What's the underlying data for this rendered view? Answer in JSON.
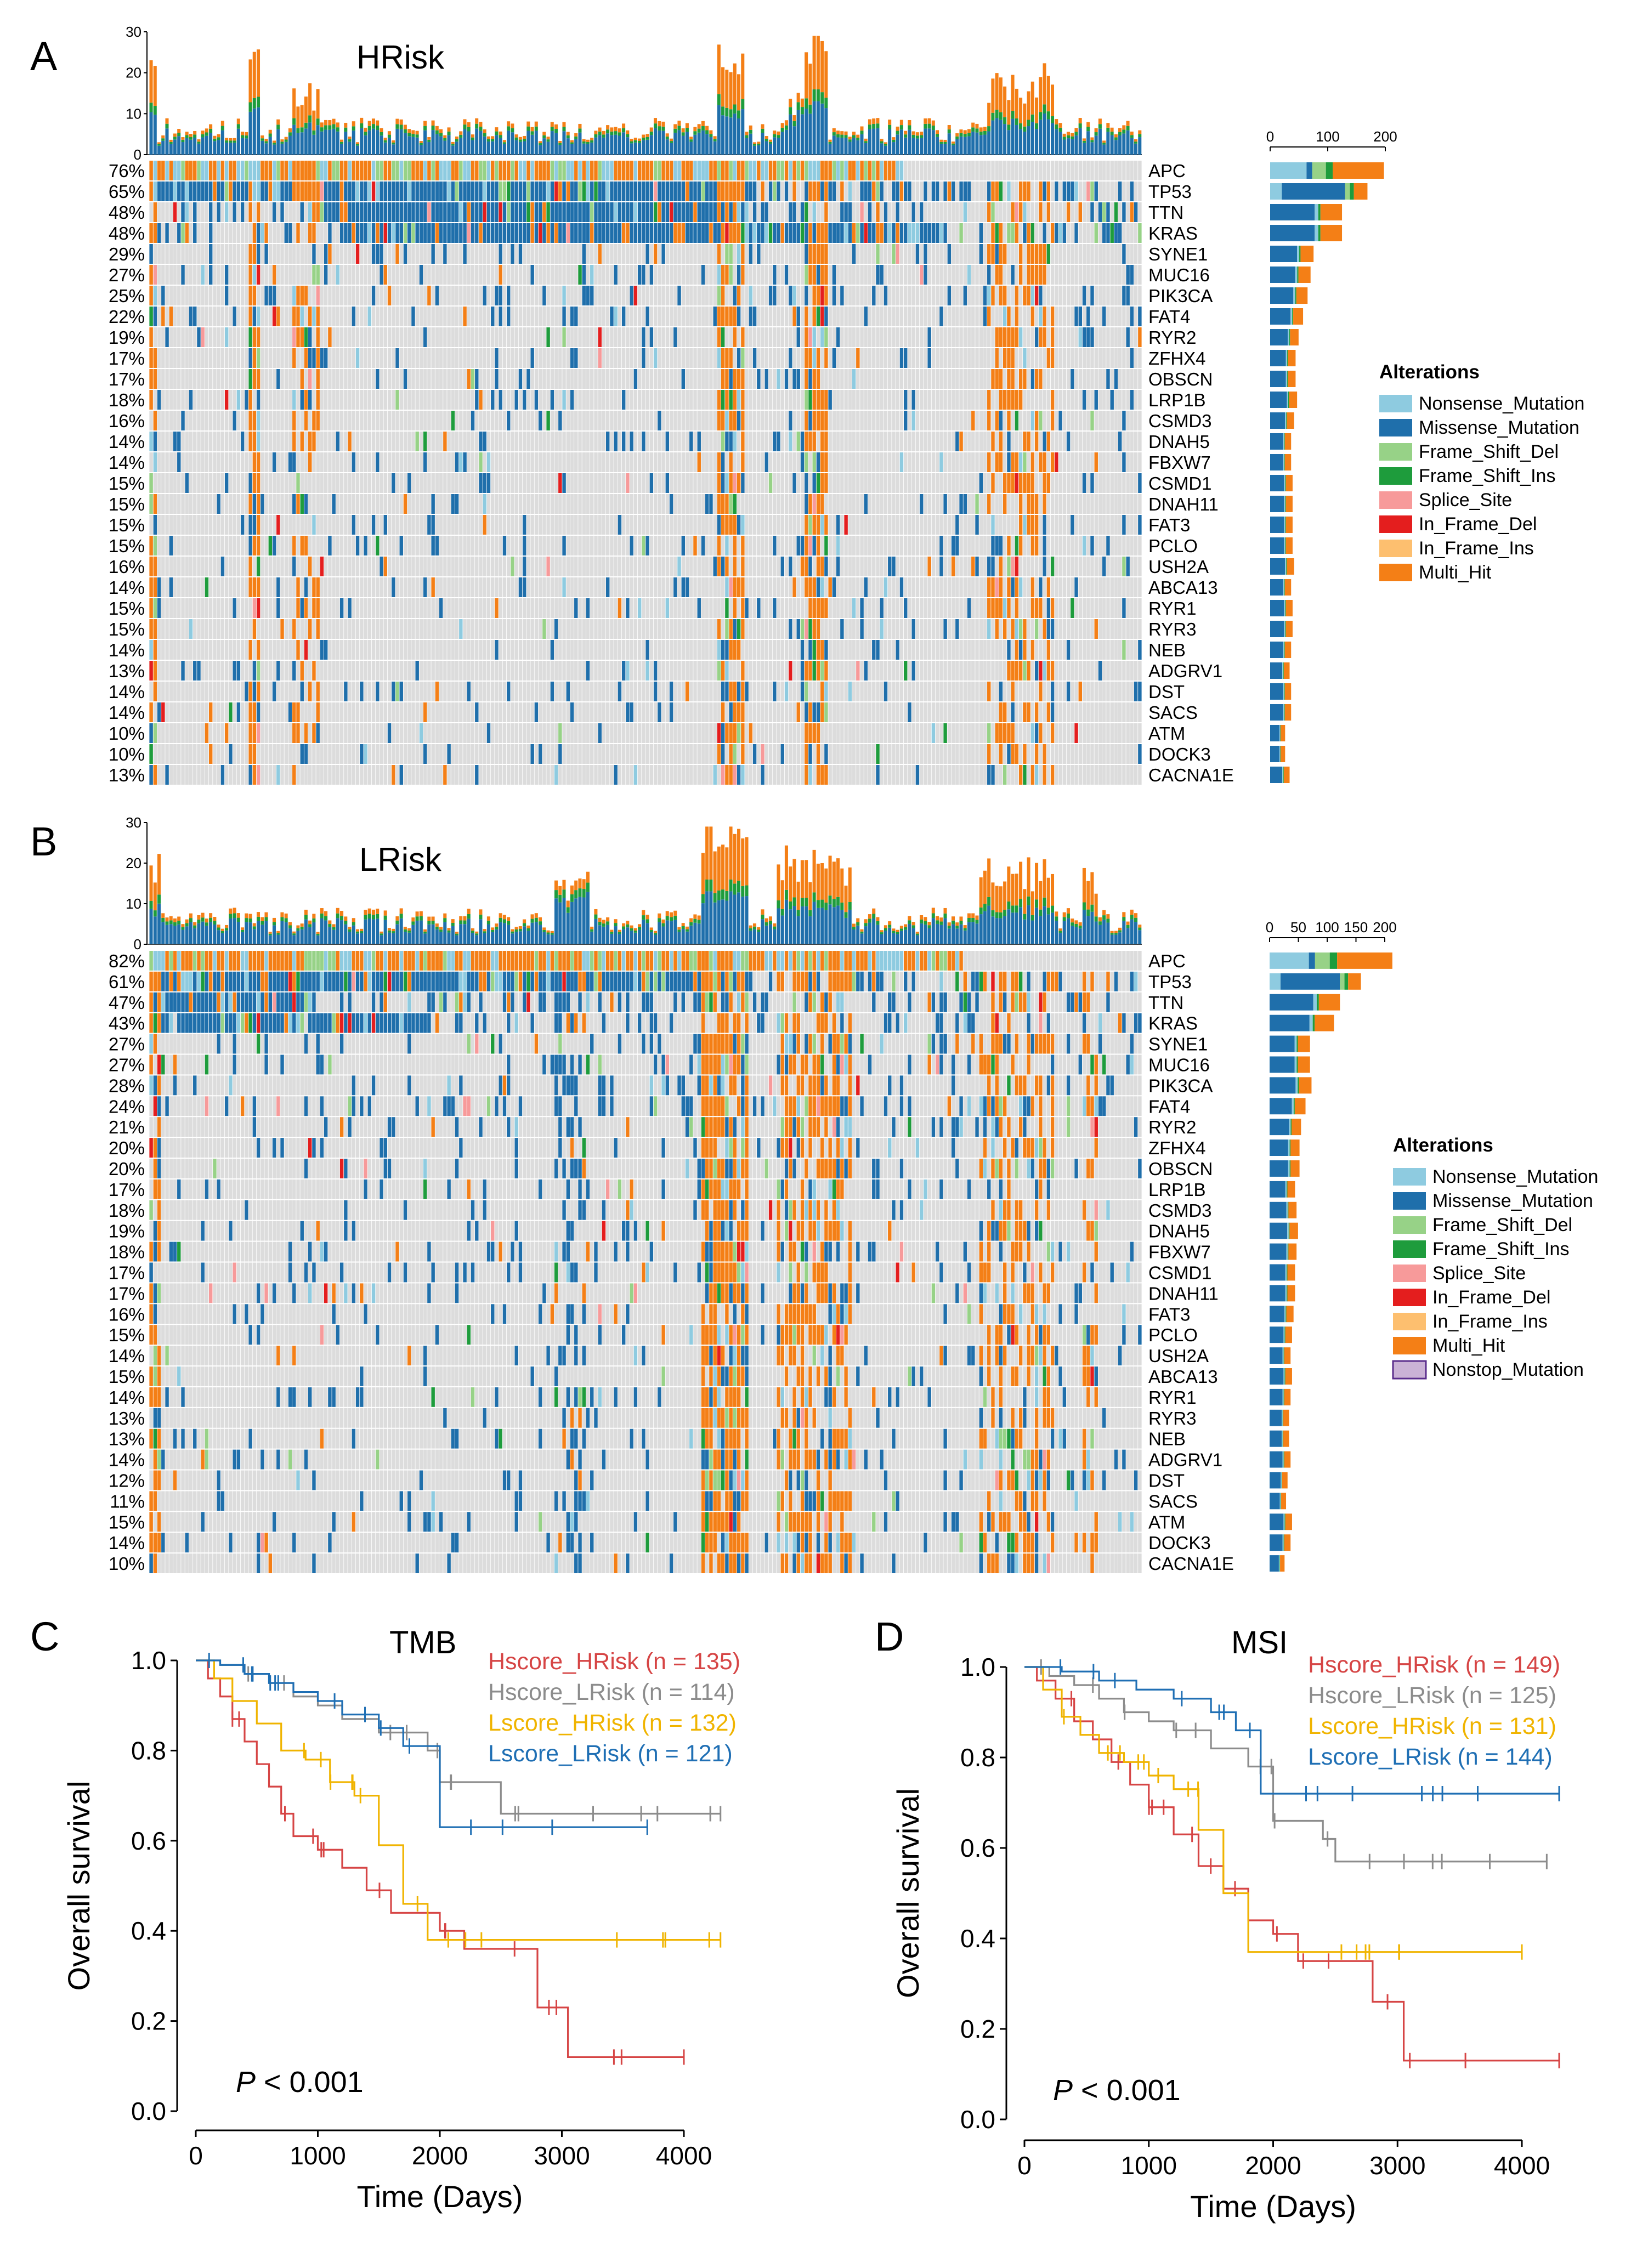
{
  "colors": {
    "Nonsense_Mutation": "#8ECBE0",
    "Missense_Mutation": "#1F6FAB",
    "Frame_Shift_Del": "#97D287",
    "Frame_Shift_Ins": "#1E9C3C",
    "Splice_Site": "#F79A9A",
    "In_Frame_Del": "#E41E1E",
    "In_Frame_Ins": "#FDBF6F",
    "Multi_Hit": "#F47F16",
    "Nonstop_Mutation": "#CAB2D6",
    "none": "#DCDCDC"
  },
  "chart_data": [
    {
      "type": "oncoplot",
      "panel": "A",
      "title": "HRisk",
      "tmb_axis": {
        "ticks": [
          "30",
          "20",
          "10",
          "0"
        ],
        "ylim": [
          0,
          30
        ]
      },
      "bar_axis": {
        "ticks": [
          "0",
          "100",
          "200"
        ],
        "xlim": [
          0,
          200
        ]
      },
      "n_samples": 250,
      "genes": [
        "APC",
        "TP53",
        "TTN",
        "KRAS",
        "SYNE1",
        "MUC16",
        "PIK3CA",
        "FAT4",
        "RYR2",
        "ZFHX4",
        "OBSCN",
        "LRP1B",
        "CSMD3",
        "DNAH5",
        "FBXW7",
        "CSMD1",
        "DNAH11",
        "FAT3",
        "PCLO",
        "USH2A",
        "ABCA13",
        "RYR1",
        "RYR3",
        "NEB",
        "ADGRV1",
        "DST",
        "SACS",
        "ATM",
        "DOCK3",
        "CACNA1E"
      ],
      "percents": [
        "76%",
        "65%",
        "48%",
        "48%",
        "29%",
        "27%",
        "25%",
        "22%",
        "19%",
        "17%",
        "17%",
        "18%",
        "16%",
        "14%",
        "14%",
        "15%",
        "15%",
        "15%",
        "15%",
        "16%",
        "14%",
        "15%",
        "15%",
        "14%",
        "13%",
        "14%",
        "14%",
        "10%",
        "10%",
        "13%"
      ],
      "pct_values": [
        76,
        65,
        48,
        48,
        29,
        27,
        25,
        22,
        19,
        17,
        17,
        18,
        16,
        14,
        14,
        15,
        15,
        15,
        15,
        16,
        14,
        15,
        15,
        14,
        13,
        14,
        14,
        10,
        10,
        13
      ],
      "legend_title": "Alterations",
      "legend": [
        "Nonsense_Mutation",
        "Missense_Mutation",
        "Frame_Shift_Del",
        "Frame_Shift_Ins",
        "Splice_Site",
        "In_Frame_Del",
        "In_Frame_Ins",
        "Multi_Hit"
      ]
    },
    {
      "type": "oncoplot",
      "panel": "B",
      "title": "LRisk",
      "tmb_axis": {
        "ticks": [
          "30",
          "20",
          "10",
          "0"
        ],
        "ylim": [
          0,
          30
        ]
      },
      "bar_axis": {
        "ticks": [
          "0",
          "50",
          "100",
          "150",
          "200"
        ],
        "xlim": [
          0,
          200
        ]
      },
      "n_samples": 250,
      "genes": [
        "APC",
        "TP53",
        "TTN",
        "KRAS",
        "SYNE1",
        "MUC16",
        "PIK3CA",
        "FAT4",
        "RYR2",
        "ZFHX4",
        "OBSCN",
        "LRP1B",
        "CSMD3",
        "DNAH5",
        "FBXW7",
        "CSMD1",
        "DNAH11",
        "FAT3",
        "PCLO",
        "USH2A",
        "ABCA13",
        "RYR1",
        "RYR3",
        "NEB",
        "ADGRV1",
        "DST",
        "SACS",
        "ATM",
        "DOCK3",
        "CACNA1E"
      ],
      "percents": [
        "82%",
        "61%",
        "47%",
        "43%",
        "27%",
        "27%",
        "28%",
        "24%",
        "21%",
        "20%",
        "20%",
        "17%",
        "18%",
        "19%",
        "18%",
        "17%",
        "17%",
        "16%",
        "15%",
        "14%",
        "15%",
        "14%",
        "13%",
        "13%",
        "14%",
        "12%",
        "11%",
        "15%",
        "14%",
        "10%"
      ],
      "pct_values": [
        82,
        61,
        47,
        43,
        27,
        27,
        28,
        24,
        21,
        20,
        20,
        17,
        18,
        19,
        18,
        17,
        17,
        16,
        15,
        14,
        15,
        14,
        13,
        13,
        14,
        12,
        11,
        15,
        14,
        10
      ],
      "legend_title": "Alterations",
      "legend": [
        "Nonsense_Mutation",
        "Missense_Mutation",
        "Frame_Shift_Del",
        "Frame_Shift_Ins",
        "Splice_Site",
        "In_Frame_Del",
        "In_Frame_Ins",
        "Multi_Hit",
        "Nonstop_Mutation"
      ]
    },
    {
      "type": "line",
      "subtype": "kaplan-meier",
      "panel": "C",
      "title": "TMB",
      "xlabel": "Time (Days)",
      "ylabel": "Overall survival",
      "xlim": [
        0,
        4300
      ],
      "ylim": [
        0,
        1.0
      ],
      "xticks": [
        "0",
        "1000",
        "2000",
        "3000",
        "4000"
      ],
      "yticks": [
        "0.0",
        "0.2",
        "0.4",
        "0.6",
        "0.8",
        "1.0"
      ],
      "pvalue": {
        "p": "P",
        "rest": " < 0.001"
      },
      "series": [
        {
          "name": "Hscore_HRisk (n = 135)",
          "color": "#D64545",
          "x": [
            0,
            100,
            200,
            300,
            400,
            500,
            600,
            700,
            800,
            1000,
            1200,
            1400,
            1600,
            1800,
            2000,
            2200,
            2800,
            3050,
            4000
          ],
          "y": [
            1.0,
            0.96,
            0.92,
            0.87,
            0.82,
            0.77,
            0.72,
            0.66,
            0.61,
            0.58,
            0.54,
            0.49,
            0.44,
            0.44,
            0.4,
            0.36,
            0.23,
            0.12,
            0.12
          ]
        },
        {
          "name": "Hscore_LRisk (n = 114)",
          "color": "#8C8C8C",
          "x": [
            0,
            200,
            400,
            600,
            800,
            1000,
            1200,
            1500,
            1900,
            2000,
            2500,
            4300
          ],
          "y": [
            1.0,
            0.99,
            0.97,
            0.95,
            0.92,
            0.9,
            0.87,
            0.84,
            0.8,
            0.73,
            0.66,
            0.66
          ]
        },
        {
          "name": "Lscore_HRisk (n = 132)",
          "color": "#F0B400",
          "x": [
            0,
            150,
            300,
            500,
            700,
            900,
            1100,
            1300,
            1500,
            1700,
            1900,
            4300
          ],
          "y": [
            1.0,
            0.96,
            0.91,
            0.86,
            0.8,
            0.78,
            0.73,
            0.7,
            0.59,
            0.46,
            0.38,
            0.38
          ]
        },
        {
          "name": "Lscore_LRisk (n = 121)",
          "color": "#1F6FB4",
          "x": [
            0,
            200,
            400,
            600,
            800,
            1000,
            1200,
            1500,
            1700,
            2000,
            3700
          ],
          "y": [
            1.0,
            0.99,
            0.97,
            0.95,
            0.93,
            0.91,
            0.88,
            0.85,
            0.81,
            0.63,
            0.63
          ]
        }
      ]
    },
    {
      "type": "line",
      "subtype": "kaplan-meier",
      "panel": "D",
      "title": "MSI",
      "xlabel": "Time (Days)",
      "ylabel": "Overall survival",
      "xlim": [
        0,
        4300
      ],
      "ylim": [
        0,
        1.0
      ],
      "xticks": [
        "0",
        "1000",
        "2000",
        "3000",
        "4000"
      ],
      "yticks": [
        "0.0",
        "0.2",
        "0.4",
        "0.6",
        "0.8",
        "1.0"
      ],
      "pvalue": {
        "p": "P",
        "rest": " < 0.001"
      },
      "series": [
        {
          "name": "Hscore_HRisk (n = 149)",
          "color": "#D64545",
          "x": [
            0,
            100,
            250,
            400,
            550,
            700,
            850,
            1000,
            1200,
            1400,
            1600,
            1800,
            2000,
            2200,
            2800,
            3050,
            4300
          ],
          "y": [
            1.0,
            0.97,
            0.93,
            0.88,
            0.84,
            0.79,
            0.74,
            0.69,
            0.63,
            0.56,
            0.51,
            0.44,
            0.41,
            0.35,
            0.26,
            0.13,
            0.13
          ]
        },
        {
          "name": "Hscore_LRisk (n = 125)",
          "color": "#8C8C8C",
          "x": [
            0,
            200,
            400,
            600,
            800,
            1000,
            1200,
            1500,
            1800,
            2000,
            2400,
            2500,
            4200
          ],
          "y": [
            1.0,
            0.98,
            0.96,
            0.93,
            0.9,
            0.88,
            0.86,
            0.82,
            0.78,
            0.66,
            0.62,
            0.57,
            0.57
          ]
        },
        {
          "name": "Lscore_HRisk (n = 131)",
          "color": "#F0B400",
          "x": [
            0,
            150,
            300,
            450,
            600,
            800,
            1000,
            1200,
            1400,
            1600,
            1800,
            4000
          ],
          "y": [
            1.0,
            0.95,
            0.89,
            0.85,
            0.81,
            0.79,
            0.76,
            0.73,
            0.64,
            0.5,
            0.37,
            0.37
          ]
        },
        {
          "name": "Lscore_LRisk (n = 144)",
          "color": "#1F6FB4",
          "x": [
            0,
            300,
            600,
            900,
            1200,
            1500,
            1700,
            1900,
            4300
          ],
          "y": [
            1.0,
            0.99,
            0.97,
            0.95,
            0.93,
            0.9,
            0.86,
            0.72,
            0.72
          ]
        }
      ]
    }
  ]
}
